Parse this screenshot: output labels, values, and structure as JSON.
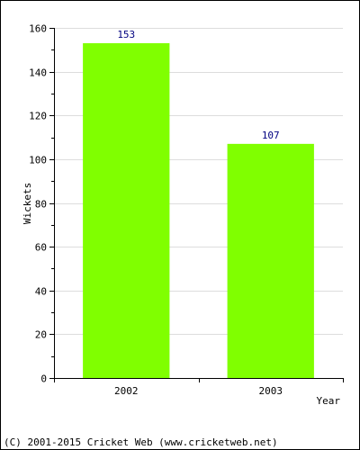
{
  "chart_data": {
    "type": "bar",
    "categories": [
      "2002",
      "2003"
    ],
    "values": [
      153,
      107
    ],
    "data_labels": [
      "153",
      "107"
    ],
    "title": "",
    "xlabel": "Year",
    "ylabel": "Wickets",
    "ylim": [
      0,
      160
    ],
    "y_ticks": [
      0,
      20,
      40,
      60,
      80,
      100,
      120,
      140,
      160
    ],
    "y_tick_labels": [
      "0",
      "20",
      "40",
      "60",
      "80",
      "100",
      "120",
      "140",
      "160"
    ],
    "grid": true,
    "legend": "none",
    "colors": {
      "bar": "#80ff00",
      "data_label": "#000080",
      "grid": "#dddddd",
      "axis": "#000000",
      "border": "#000000"
    }
  },
  "footer": {
    "copyright": "(C) 2001-2015 Cricket Web (www.cricketweb.net)"
  }
}
